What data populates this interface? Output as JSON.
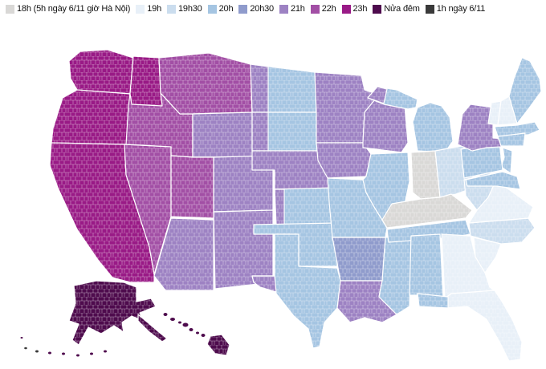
{
  "legend": {
    "items": [
      {
        "key": "18h",
        "label": "18h (5h ngày 6/11 giờ Hà Nội)",
        "color": "#d9d8d6"
      },
      {
        "key": "19h",
        "label": "19h",
        "color": "#e8f0f8"
      },
      {
        "key": "19h30",
        "label": "19h30",
        "color": "#cbddee"
      },
      {
        "key": "20h",
        "label": "20h",
        "color": "#a5c5e2"
      },
      {
        "key": "20h30",
        "label": "20h30",
        "color": "#8f9bcc"
      },
      {
        "key": "21h",
        "label": "21h",
        "color": "#9d82c3"
      },
      {
        "key": "22h",
        "label": "22h",
        "color": "#a24fa5"
      },
      {
        "key": "23h",
        "label": "23h",
        "color": "#991a86"
      },
      {
        "key": "nua-dem",
        "label": "Nửa đêm",
        "color": "#4e0b4d"
      },
      {
        "key": "1h",
        "label": "1h ngày 6/11",
        "color": "#3a3a3a"
      }
    ]
  },
  "chart_data": {
    "type": "choropleth_map",
    "geography": "United States counties",
    "legend_position": "top",
    "regions": [
      {
        "name": "Washington",
        "id": "WA",
        "category": "23h"
      },
      {
        "name": "Oregon",
        "id": "OR",
        "category": "23h"
      },
      {
        "name": "California",
        "id": "CA",
        "category": "23h"
      },
      {
        "name": "Nevada",
        "id": "NV",
        "category": "22h"
      },
      {
        "name": "Idaho",
        "id": "ID",
        "category": "22h"
      },
      {
        "name": "Idaho (north)",
        "id": "ID-N",
        "category": "23h"
      },
      {
        "name": "Montana",
        "id": "MT",
        "category": "22h"
      },
      {
        "name": "Wyoming",
        "id": "WY",
        "category": "21h"
      },
      {
        "name": "Utah",
        "id": "UT",
        "category": "22h"
      },
      {
        "name": "Colorado",
        "id": "CO",
        "category": "21h"
      },
      {
        "name": "Arizona",
        "id": "AZ",
        "category": "21h"
      },
      {
        "name": "New Mexico",
        "id": "NM",
        "category": "21h"
      },
      {
        "name": "North Dakota",
        "id": "ND",
        "category": "20h"
      },
      {
        "name": "North Dakota (west)",
        "id": "ND-W",
        "category": "21h"
      },
      {
        "name": "South Dakota",
        "id": "SD",
        "category": "20h"
      },
      {
        "name": "South Dakota (west)",
        "id": "SD-W",
        "category": "21h"
      },
      {
        "name": "Nebraska",
        "id": "NE",
        "category": "21h"
      },
      {
        "name": "Kansas",
        "id": "KS",
        "category": "20h"
      },
      {
        "name": "Kansas (west)",
        "id": "KS-W",
        "category": "21h"
      },
      {
        "name": "Oklahoma",
        "id": "OK",
        "category": "20h"
      },
      {
        "name": "Texas",
        "id": "TX",
        "category": "20h"
      },
      {
        "name": "Texas (west / El Paso)",
        "id": "TX-W",
        "category": "21h"
      },
      {
        "name": "Minnesota",
        "id": "MN",
        "category": "21h"
      },
      {
        "name": "Iowa",
        "id": "IA",
        "category": "21h"
      },
      {
        "name": "Missouri",
        "id": "MO",
        "category": "20h"
      },
      {
        "name": "Arkansas",
        "id": "AR",
        "category": "20h30"
      },
      {
        "name": "Louisiana",
        "id": "LA",
        "category": "21h"
      },
      {
        "name": "Wisconsin",
        "id": "WI",
        "category": "21h"
      },
      {
        "name": "Illinois",
        "id": "IL",
        "category": "20h"
      },
      {
        "name": "Mississippi",
        "id": "MS",
        "category": "20h"
      },
      {
        "name": "Michigan (upper peninsula)",
        "id": "MI-UP",
        "category": "20h"
      },
      {
        "name": "Michigan",
        "id": "MI-LP",
        "category": "20h"
      },
      {
        "name": "Michigan (west UP)",
        "id": "MI-UP-W",
        "category": "21h"
      },
      {
        "name": "Indiana",
        "id": "IN",
        "category": "18h"
      },
      {
        "name": "Ohio",
        "id": "OH",
        "category": "19h30"
      },
      {
        "name": "Kentucky",
        "id": "KY",
        "category": "18h"
      },
      {
        "name": "Tennessee",
        "id": "TN",
        "category": "20h"
      },
      {
        "name": "Alabama",
        "id": "AL",
        "category": "20h"
      },
      {
        "name": "Georgia",
        "id": "GA",
        "category": "19h"
      },
      {
        "name": "Florida",
        "id": "FL",
        "category": "19h"
      },
      {
        "name": "Florida (panhandle)",
        "id": "FL-PH",
        "category": "20h"
      },
      {
        "name": "South Carolina",
        "id": "SC",
        "category": "19h"
      },
      {
        "name": "North Carolina",
        "id": "NC",
        "category": "19h30"
      },
      {
        "name": "Virginia",
        "id": "VA",
        "category": "19h"
      },
      {
        "name": "West Virginia",
        "id": "WV",
        "category": "19h30"
      },
      {
        "name": "Maryland / Delaware",
        "id": "MD-DE",
        "category": "20h"
      },
      {
        "name": "New Jersey",
        "id": "NJ",
        "category": "20h"
      },
      {
        "name": "Pennsylvania",
        "id": "PA",
        "category": "20h"
      },
      {
        "name": "New York",
        "id": "NY",
        "category": "21h"
      },
      {
        "name": "Vermont",
        "id": "VT",
        "category": "19h"
      },
      {
        "name": "New Hampshire",
        "id": "NH",
        "category": "19h"
      },
      {
        "name": "Maine",
        "id": "ME",
        "category": "20h"
      },
      {
        "name": "Massachusetts",
        "id": "MA",
        "category": "20h"
      },
      {
        "name": "Connecticut / Rhode Island",
        "id": "CT-RI",
        "category": "20h"
      },
      {
        "name": "Alaska",
        "id": "AK",
        "category": "nua-dem"
      },
      {
        "name": "Alaska (southeast)",
        "id": "AK-SE",
        "category": "nua-dem"
      },
      {
        "name": "Aleutian Islands",
        "id": "AK-ALEUT",
        "category": "nua-dem"
      },
      {
        "name": "Aleutian Islands (far west)",
        "id": "AK-ALEUT-W",
        "category": "1h"
      },
      {
        "name": "Hawaii",
        "id": "HI",
        "category": "nua-dem"
      },
      {
        "name": "Hawaii (big island)",
        "id": "HI-BIG",
        "category": "nua-dem"
      }
    ]
  }
}
